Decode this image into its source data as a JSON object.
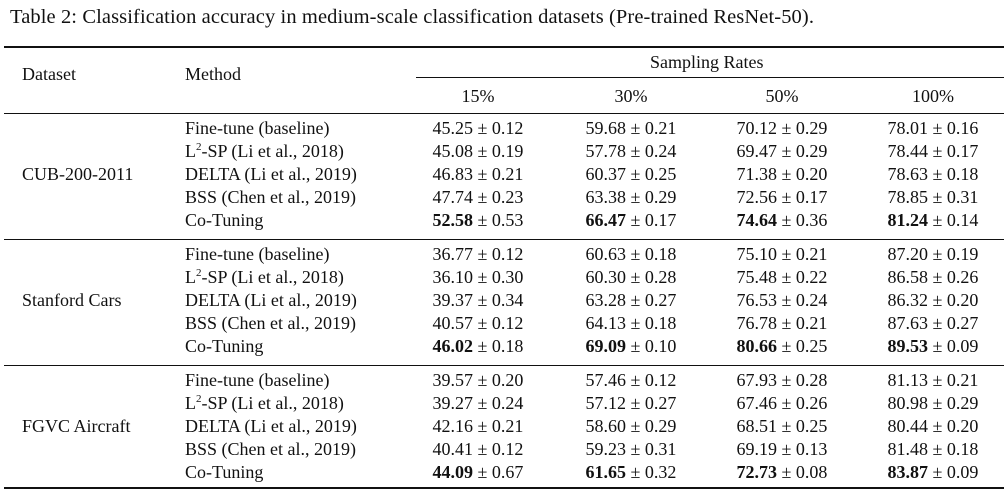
{
  "caption": "Table 2: Classification accuracy in medium-scale classification datasets (Pre-trained ResNet-50).",
  "header": {
    "dataset": "Dataset",
    "method": "Method",
    "group": "Sampling Rates",
    "rates": [
      "15%",
      "30%",
      "50%",
      "100%"
    ]
  },
  "groups": [
    {
      "dataset": "CUB-200-2011",
      "rows": [
        {
          "method": "Fine-tune (baseline)",
          "values": [
            [
              "45.25",
              "0.12"
            ],
            [
              "59.68",
              "0.21"
            ],
            [
              "70.12",
              "0.29"
            ],
            [
              "78.01",
              "0.16"
            ]
          ]
        },
        {
          "method_pre": "L",
          "method_sup": "2",
          "method_post": "-SP (Li et al., 2018)",
          "values": [
            [
              "45.08",
              "0.19"
            ],
            [
              "57.78",
              "0.24"
            ],
            [
              "69.47",
              "0.29"
            ],
            [
              "78.44",
              "0.17"
            ]
          ]
        },
        {
          "method": "DELTA (Li et al., 2019)",
          "values": [
            [
              "46.83",
              "0.21"
            ],
            [
              "60.37",
              "0.25"
            ],
            [
              "71.38",
              "0.20"
            ],
            [
              "78.63",
              "0.18"
            ]
          ]
        },
        {
          "method": "BSS (Chen et al., 2019)",
          "values": [
            [
              "47.74",
              "0.23"
            ],
            [
              "63.38",
              "0.29"
            ],
            [
              "72.56",
              "0.17"
            ],
            [
              "78.85",
              "0.31"
            ]
          ]
        },
        {
          "method": "Co-Tuning",
          "bold": true,
          "values": [
            [
              "52.58",
              "0.53"
            ],
            [
              "66.47",
              "0.17"
            ],
            [
              "74.64",
              "0.36"
            ],
            [
              "81.24",
              "0.14"
            ]
          ]
        }
      ]
    },
    {
      "dataset": "Stanford Cars",
      "rows": [
        {
          "method": "Fine-tune (baseline)",
          "values": [
            [
              "36.77",
              "0.12"
            ],
            [
              "60.63",
              "0.18"
            ],
            [
              "75.10",
              "0.21"
            ],
            [
              "87.20",
              "0.19"
            ]
          ]
        },
        {
          "method_pre": "L",
          "method_sup": "2",
          "method_post": "-SP (Li et al., 2018)",
          "values": [
            [
              "36.10",
              "0.30"
            ],
            [
              "60.30",
              "0.28"
            ],
            [
              "75.48",
              "0.22"
            ],
            [
              "86.58",
              "0.26"
            ]
          ]
        },
        {
          "method": "DELTA (Li et al., 2019)",
          "values": [
            [
              "39.37",
              "0.34"
            ],
            [
              "63.28",
              "0.27"
            ],
            [
              "76.53",
              "0.24"
            ],
            [
              "86.32",
              "0.20"
            ]
          ]
        },
        {
          "method": "BSS (Chen et al., 2019)",
          "values": [
            [
              "40.57",
              "0.12"
            ],
            [
              "64.13",
              "0.18"
            ],
            [
              "76.78",
              "0.21"
            ],
            [
              "87.63",
              "0.27"
            ]
          ]
        },
        {
          "method": "Co-Tuning",
          "bold": true,
          "values": [
            [
              "46.02",
              "0.18"
            ],
            [
              "69.09",
              "0.10"
            ],
            [
              "80.66",
              "0.25"
            ],
            [
              "89.53",
              "0.09"
            ]
          ]
        }
      ]
    },
    {
      "dataset": "FGVC Aircraft",
      "rows": [
        {
          "method": "Fine-tune (baseline)",
          "values": [
            [
              "39.57",
              "0.20"
            ],
            [
              "57.46",
              "0.12"
            ],
            [
              "67.93",
              "0.28"
            ],
            [
              "81.13",
              "0.21"
            ]
          ]
        },
        {
          "method_pre": "L",
          "method_sup": "2",
          "method_post": "-SP (Li et al., 2018)",
          "values": [
            [
              "39.27",
              "0.24"
            ],
            [
              "57.12",
              "0.27"
            ],
            [
              "67.46",
              "0.26"
            ],
            [
              "80.98",
              "0.29"
            ]
          ]
        },
        {
          "method": "DELTA (Li et al., 2019)",
          "values": [
            [
              "42.16",
              "0.21"
            ],
            [
              "58.60",
              "0.29"
            ],
            [
              "68.51",
              "0.25"
            ],
            [
              "80.44",
              "0.20"
            ]
          ]
        },
        {
          "method": "BSS (Chen et al., 2019)",
          "values": [
            [
              "40.41",
              "0.12"
            ],
            [
              "59.23",
              "0.31"
            ],
            [
              "69.19",
              "0.13"
            ],
            [
              "81.48",
              "0.18"
            ]
          ]
        },
        {
          "method": "Co-Tuning",
          "bold": true,
          "values": [
            [
              "44.09",
              "0.67"
            ],
            [
              "61.65",
              "0.32"
            ],
            [
              "72.73",
              "0.08"
            ],
            [
              "83.87",
              "0.09"
            ]
          ]
        }
      ]
    }
  ]
}
